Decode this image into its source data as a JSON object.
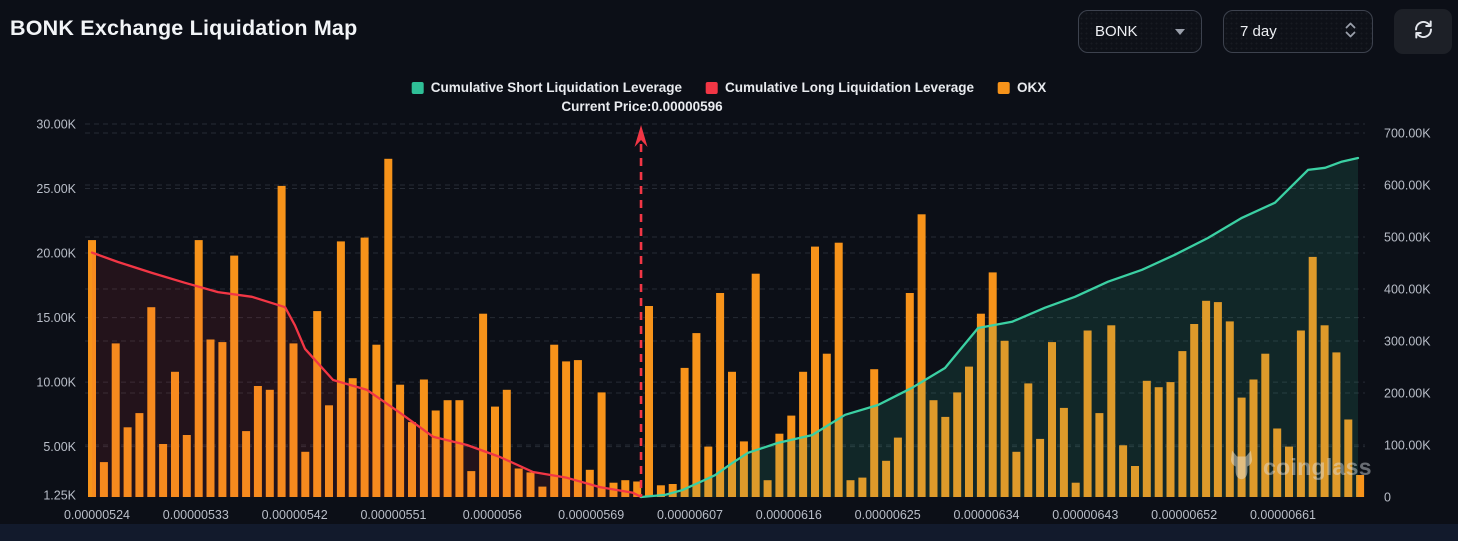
{
  "header": {
    "title": "BONK Exchange Liquidation Map",
    "coin_select": {
      "value": "BONK"
    },
    "range_select": {
      "value": "7 day"
    },
    "refresh_tooltip": "refresh"
  },
  "legend": {
    "items": [
      {
        "label": "Cumulative Short Liquidation Leverage",
        "color": "#2fbf97"
      },
      {
        "label": "Cumulative Long Liquidation Leverage",
        "color": "#f23645"
      },
      {
        "label": "OKX",
        "color": "#f7931a"
      }
    ]
  },
  "watermark": {
    "text": "coinglass"
  },
  "chart_data": {
    "type": "bar",
    "title": "BONK Exchange Liquidation Map",
    "grid": "dashed",
    "current_price": {
      "label": "Current Price:0.00000596",
      "value": "0.00000596",
      "x_frac": 0.4344,
      "color": "#f23645"
    },
    "x_tick_labels": [
      "0.00000524",
      "0.00000533",
      "0.00000542",
      "0.00000551",
      "0.0000056",
      "0.00000569",
      "0.00000607",
      "0.00000616",
      "0.00000625",
      "0.00000634",
      "0.00000643",
      "0.00000652",
      "0.00000661"
    ],
    "left_axis": {
      "unit": "K",
      "min": 1.25,
      "max": 30,
      "tick_labels": [
        "30.00K",
        "25.00K",
        "20.00K",
        "15.00K",
        "10.00K",
        "5.00K",
        "1.25K"
      ],
      "tick_values": [
        30,
        25,
        20,
        15,
        10,
        5,
        1.25
      ]
    },
    "right_axis": {
      "unit": "K",
      "min": 0,
      "max": 700,
      "tick_labels": [
        "700.00K",
        "600.00K",
        "500.00K",
        "400.00K",
        "300.00K",
        "200.00K",
        "100.00K",
        "0"
      ],
      "tick_values": [
        700,
        600,
        500,
        400,
        300,
        200,
        100,
        0
      ]
    },
    "bars": {
      "name": "OKX",
      "axis": "left",
      "unit": "K",
      "color": "#f7931a",
      "values": [
        21.0,
        3.8,
        13.0,
        6.5,
        7.6,
        15.8,
        5.2,
        10.8,
        5.9,
        21.0,
        13.3,
        13.1,
        19.8,
        6.2,
        9.7,
        9.4,
        25.2,
        13.0,
        4.6,
        15.5,
        8.2,
        20.9,
        10.3,
        21.2,
        12.9,
        27.3,
        9.8,
        6.9,
        10.2,
        7.8,
        8.6,
        8.6,
        3.1,
        15.3,
        8.1,
        9.4,
        3.3,
        3.0,
        1.9,
        12.9,
        11.6,
        11.7,
        3.2,
        9.2,
        2.2,
        2.4,
        2.3,
        15.9,
        2.0,
        2.1,
        11.1,
        13.8,
        5.0,
        16.9,
        10.8,
        5.4,
        18.4,
        2.4,
        6.0,
        7.4,
        10.8,
        20.5,
        12.2,
        20.8,
        2.4,
        2.6,
        11.0,
        3.9,
        5.7,
        16.9,
        23.0,
        8.6,
        7.3,
        9.2,
        11.2,
        15.3,
        18.5,
        13.2,
        4.6,
        9.9,
        5.6,
        13.1,
        8.0,
        2.2,
        14.0,
        7.6,
        14.4,
        5.1,
        3.5,
        10.1,
        9.6,
        10.0,
        12.4,
        14.5,
        16.3,
        16.2,
        14.7,
        8.8,
        10.2,
        12.2,
        6.4,
        5.0,
        14.0,
        19.7,
        14.4,
        12.3,
        7.1,
        2.8
      ]
    },
    "lines": [
      {
        "name": "Cumulative Long Liquidation Leverage",
        "axis": "right",
        "unit": "K",
        "color": "#f23645",
        "fill": "rgba(242,54,69,0.10)",
        "points": [
          [
            0.0055,
            470
          ],
          [
            0.0258,
            452
          ],
          [
            0.0523,
            431
          ],
          [
            0.0781,
            412
          ],
          [
            0.1039,
            394
          ],
          [
            0.1305,
            385
          ],
          [
            0.1563,
            365
          ],
          [
            0.1641,
            330
          ],
          [
            0.1719,
            285
          ],
          [
            0.1938,
            225
          ],
          [
            0.2203,
            206
          ],
          [
            0.2461,
            162
          ],
          [
            0.2719,
            116
          ],
          [
            0.2984,
            100
          ],
          [
            0.3242,
            77
          ],
          [
            0.35,
            48
          ],
          [
            0.3766,
            37
          ],
          [
            0.4023,
            19
          ],
          [
            0.4281,
            8
          ],
          [
            0.4344,
            0
          ]
        ]
      },
      {
        "name": "Cumulative Short Liquidation Leverage",
        "axis": "right",
        "unit": "K",
        "color": "#3bd0a3",
        "fill": "rgba(53,201,158,0.13)",
        "points": [
          [
            0.4344,
            0
          ],
          [
            0.4531,
            4
          ],
          [
            0.4664,
            13
          ],
          [
            0.4789,
            27
          ],
          [
            0.4922,
            42
          ],
          [
            0.5055,
            65
          ],
          [
            0.518,
            85
          ],
          [
            0.5414,
            104
          ],
          [
            0.568,
            119
          ],
          [
            0.5938,
            158
          ],
          [
            0.6195,
            177
          ],
          [
            0.6461,
            210
          ],
          [
            0.6719,
            248
          ],
          [
            0.6977,
            325
          ],
          [
            0.7242,
            337
          ],
          [
            0.75,
            364
          ],
          [
            0.7734,
            385
          ],
          [
            0.7992,
            414
          ],
          [
            0.8258,
            437
          ],
          [
            0.8516,
            466
          ],
          [
            0.8773,
            498
          ],
          [
            0.9039,
            537
          ],
          [
            0.9297,
            566
          ],
          [
            0.9555,
            629
          ],
          [
            0.9688,
            633
          ],
          [
            0.982,
            645
          ],
          [
            0.9945,
            652
          ]
        ]
      }
    ]
  }
}
